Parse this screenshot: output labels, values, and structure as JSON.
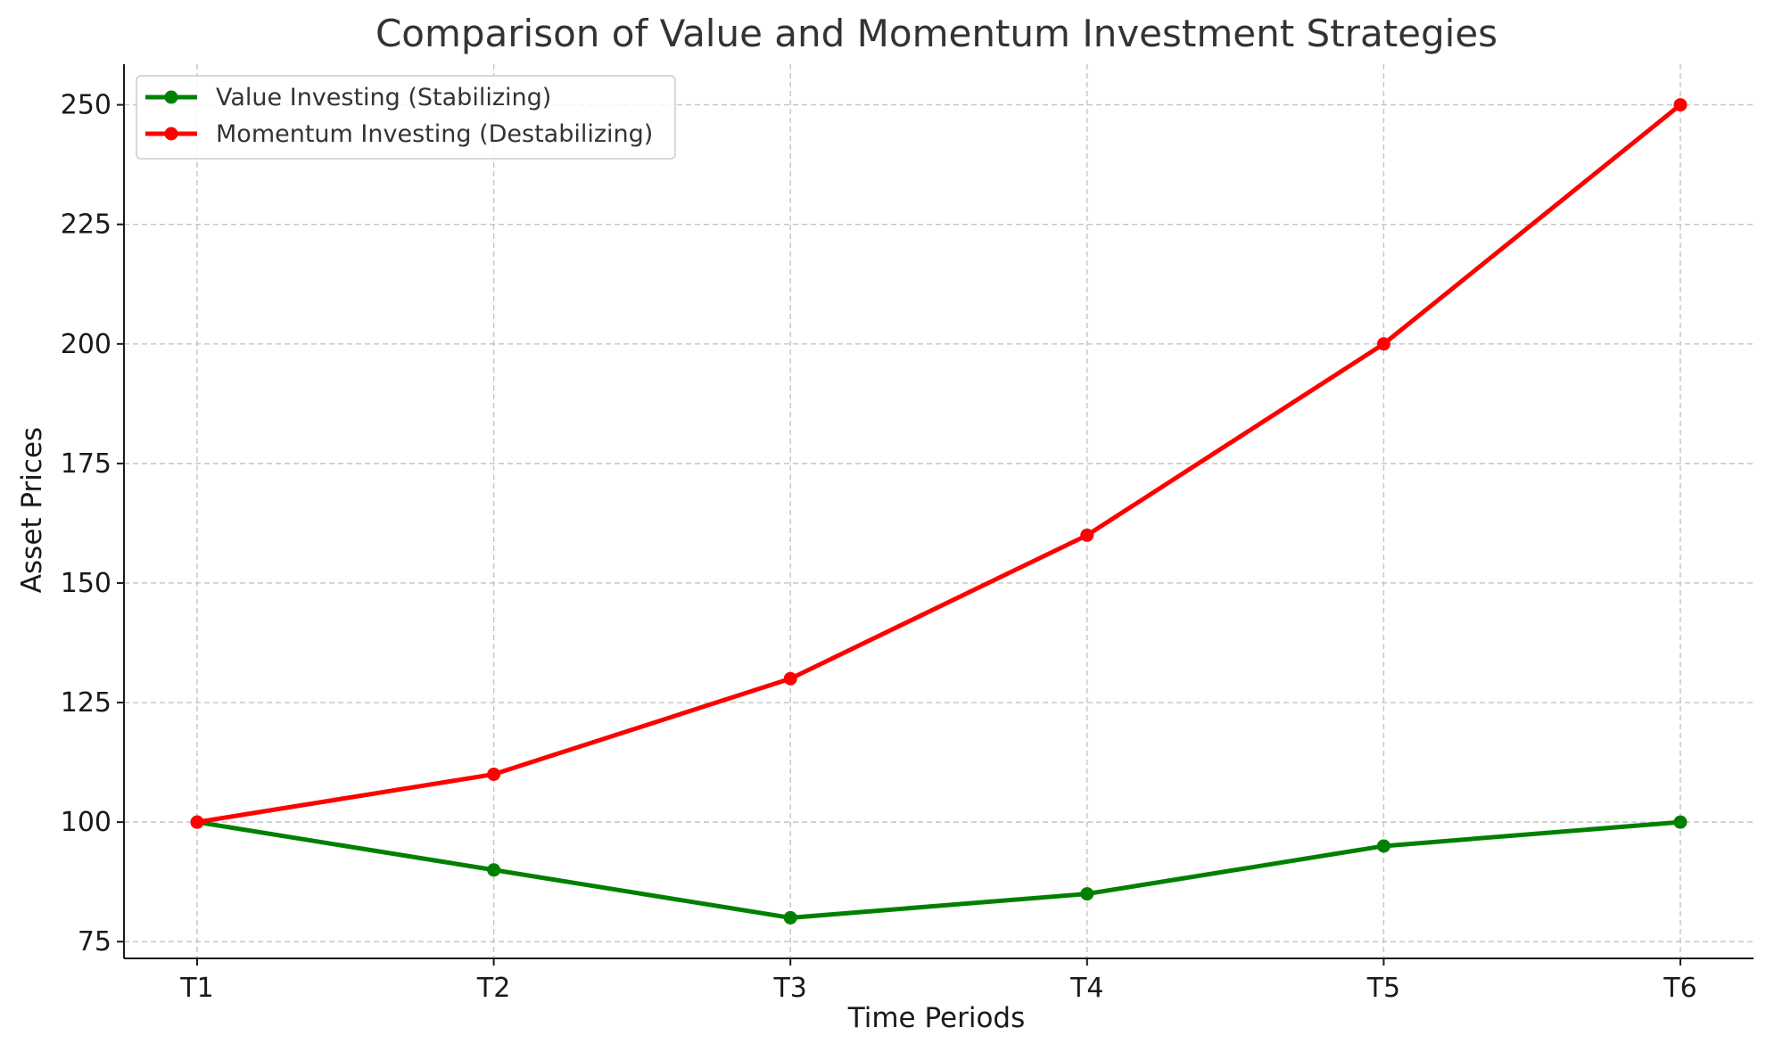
{
  "chart_data": {
    "type": "line",
    "title": "Comparison of Value and Momentum Investment Strategies",
    "xlabel": "Time Periods",
    "ylabel": "Asset Prices",
    "categories": [
      "T1",
      "T2",
      "T3",
      "T4",
      "T5",
      "T6"
    ],
    "ylim": [
      71.5,
      258.5
    ],
    "yticks": [
      75,
      100,
      125,
      150,
      175,
      200,
      225,
      250
    ],
    "grid": true,
    "legend_position": "top-left",
    "series": [
      {
        "name": "Value Investing (Stabilizing)",
        "color": "#008000",
        "values": [
          100,
          90,
          80,
          85,
          95,
          100
        ]
      },
      {
        "name": "Momentum Investing (Destabilizing)",
        "color": "#ff0000",
        "values": [
          100,
          110,
          130,
          160,
          200,
          250
        ]
      }
    ]
  }
}
